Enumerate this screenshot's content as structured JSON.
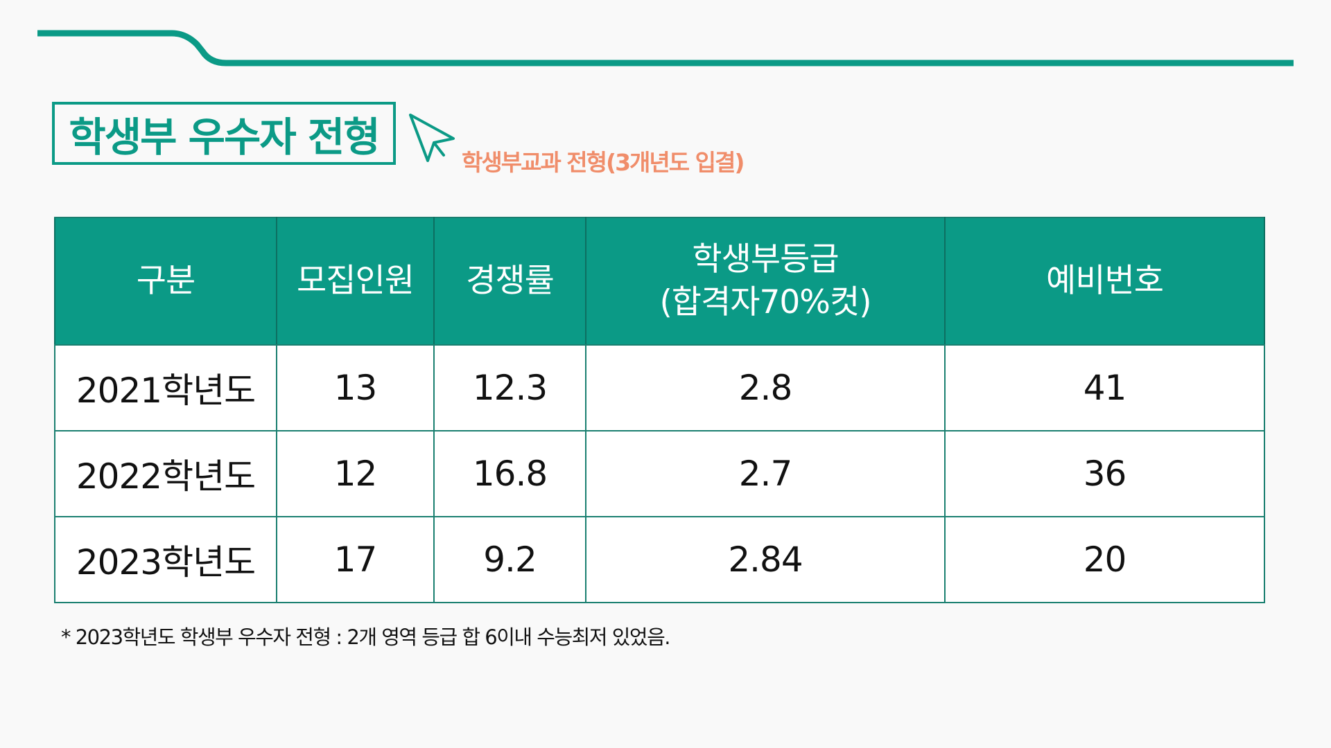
{
  "header": {
    "title": "학생부 우수자 전형",
    "subtitle": "학생부교과 전형(3개년도 입결)"
  },
  "table": {
    "columns": {
      "category": "구분",
      "recruits": "모집인원",
      "competition": "경쟁률",
      "grade_line1": "학생부등급",
      "grade_line2": "(합격자70%컷)",
      "waitlist": "예비번호"
    },
    "rows": [
      {
        "year": "2021학년도",
        "recruits": "13",
        "competition": "12.3",
        "grade": "2.8",
        "waitlist": "41"
      },
      {
        "year": "2022학년도",
        "recruits": "12",
        "competition": "16.8",
        "grade": "2.7",
        "waitlist": "36"
      },
      {
        "year": "2023학년도",
        "recruits": "17",
        "competition": "9.2",
        "grade": "2.84",
        "waitlist": "20"
      }
    ]
  },
  "footnote": "* 2023학년도 학생부 우수자 전형 : 2개 영역 등급 합 6이내 수능최저 있었음.",
  "colors": {
    "accent": "#0b9a86",
    "subtitle": "#f08d6a"
  }
}
